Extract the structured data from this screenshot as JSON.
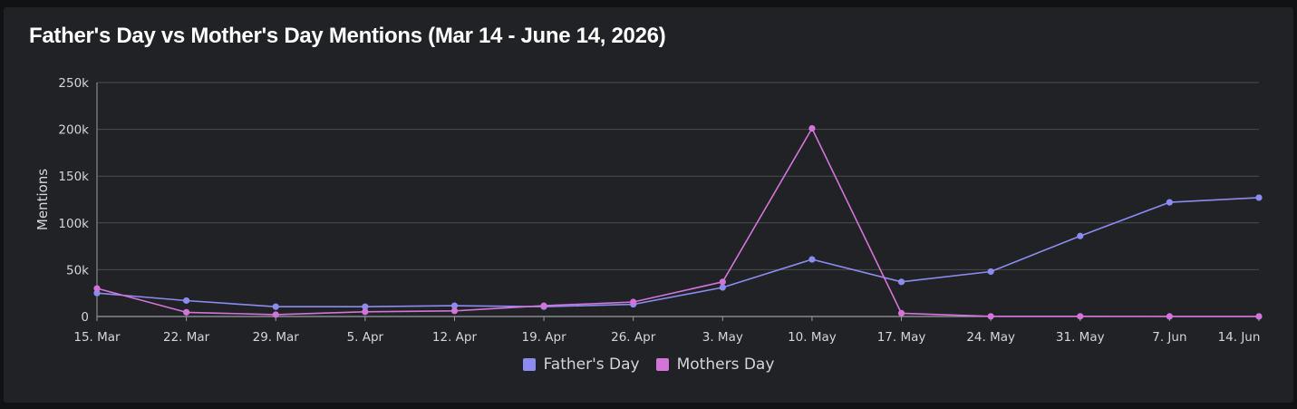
{
  "colors": {
    "fathers": "#8c8cf0",
    "mothers": "#d274d8",
    "grid": "#4a4c52",
    "axis": "#9a9ca2"
  },
  "chart_data": {
    "type": "line",
    "title": "Father's Day vs Mother's Day Mentions (Mar 14 - June 14, 2026)",
    "xlabel": "",
    "ylabel": "Mentions",
    "ylim": [
      0,
      250000
    ],
    "yticks": [
      0,
      50000,
      100000,
      150000,
      200000,
      250000
    ],
    "ytick_labels": [
      "0",
      "50k",
      "100k",
      "150k",
      "200k",
      "250k"
    ],
    "categories": [
      "15. Mar",
      "22. Mar",
      "29. Mar",
      "5. Apr",
      "12. Apr",
      "19. Apr",
      "26. Apr",
      "3. May",
      "10. May",
      "17. May",
      "24. May",
      "31. May",
      "7. Jun",
      "14. Jun"
    ],
    "grid": true,
    "legend_position": "bottom-center",
    "series": [
      {
        "name": "Father's Day",
        "color": "#8c8cf0",
        "values": [
          25000,
          17000,
          10500,
          10500,
          11500,
          10500,
          13000,
          31000,
          61000,
          37000,
          48000,
          86000,
          122000,
          127000
        ]
      },
      {
        "name": "Mothers Day",
        "color": "#d274d8",
        "values": [
          30000,
          4500,
          2000,
          5000,
          6000,
          11500,
          15500,
          37000,
          201000,
          3500,
          200,
          150,
          100,
          100
        ]
      }
    ]
  }
}
